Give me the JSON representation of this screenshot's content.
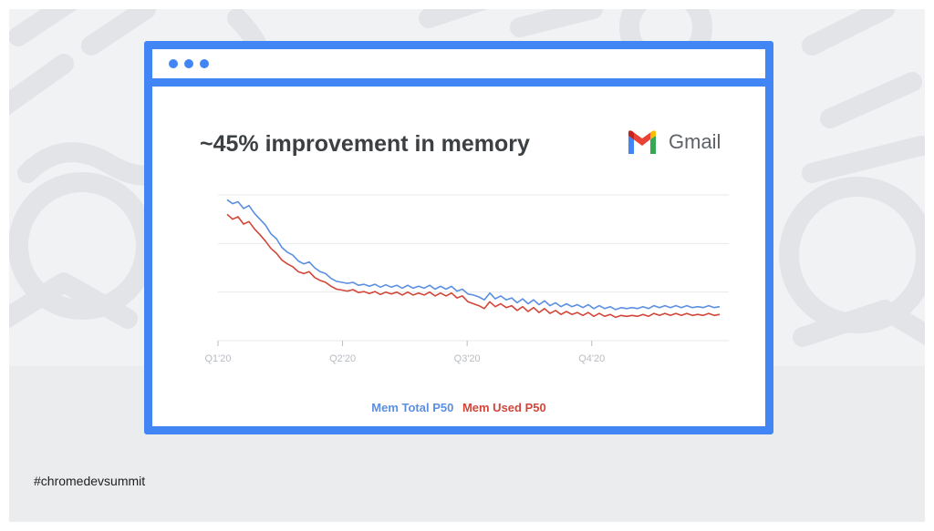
{
  "slide": {
    "hashtag": "#chromedevsummit"
  },
  "browser": {
    "headline": "~45% improvement in memory",
    "brand_name": "Gmail",
    "brand_icon": "gmail-logo-icon"
  },
  "colors": {
    "frame": "#4285f4",
    "total": "#5b8fe0",
    "used": "#d2463a",
    "grid": "#e8eaed",
    "tick": "#b8bcc2"
  },
  "chart_data": {
    "type": "line",
    "title": "~45% improvement in memory",
    "xlabel": "",
    "ylabel": "",
    "x_ticks": [
      "Q1'20",
      "Q2'20",
      "Q3'20",
      "Q4'20"
    ],
    "grid": true,
    "legend_position": "bottom-center",
    "ylim": [
      0,
      3
    ],
    "series": [
      {
        "name": "Mem Total P50",
        "color": "#5b8fe0",
        "values": [
          2.9,
          2.82,
          2.86,
          2.72,
          2.78,
          2.62,
          2.5,
          2.38,
          2.2,
          2.1,
          1.92,
          1.82,
          1.76,
          1.64,
          1.58,
          1.62,
          1.5,
          1.42,
          1.38,
          1.28,
          1.22,
          1.2,
          1.18,
          1.2,
          1.14,
          1.16,
          1.12,
          1.16,
          1.1,
          1.15,
          1.1,
          1.14,
          1.08,
          1.14,
          1.08,
          1.12,
          1.08,
          1.14,
          1.06,
          1.12,
          1.06,
          1.12,
          1.02,
          1.06,
          0.96,
          0.94,
          0.9,
          0.84,
          0.98,
          0.86,
          0.92,
          0.84,
          0.88,
          0.78,
          0.86,
          0.76,
          0.84,
          0.74,
          0.82,
          0.72,
          0.78,
          0.7,
          0.76,
          0.7,
          0.74,
          0.68,
          0.74,
          0.66,
          0.72,
          0.66,
          0.7,
          0.64,
          0.68,
          0.66,
          0.68,
          0.66,
          0.7,
          0.66,
          0.72,
          0.68,
          0.72,
          0.68,
          0.72,
          0.68,
          0.72,
          0.68,
          0.7,
          0.68,
          0.72,
          0.68,
          0.7
        ]
      },
      {
        "name": "Mem Used P50",
        "color": "#d2463a",
        "values": [
          2.6,
          2.5,
          2.55,
          2.4,
          2.45,
          2.3,
          2.18,
          2.05,
          1.9,
          1.8,
          1.66,
          1.58,
          1.52,
          1.42,
          1.38,
          1.42,
          1.3,
          1.24,
          1.2,
          1.12,
          1.06,
          1.04,
          1.02,
          1.05,
          0.99,
          1.01,
          0.97,
          1.01,
          0.95,
          1.0,
          0.96,
          1.0,
          0.94,
          1.0,
          0.94,
          0.98,
          0.94,
          1.0,
          0.92,
          0.98,
          0.92,
          0.98,
          0.88,
          0.92,
          0.8,
          0.76,
          0.72,
          0.66,
          0.8,
          0.7,
          0.76,
          0.68,
          0.72,
          0.62,
          0.7,
          0.6,
          0.68,
          0.58,
          0.66,
          0.56,
          0.62,
          0.54,
          0.6,
          0.54,
          0.58,
          0.52,
          0.58,
          0.5,
          0.56,
          0.5,
          0.54,
          0.48,
          0.52,
          0.5,
          0.52,
          0.5,
          0.54,
          0.5,
          0.56,
          0.52,
          0.56,
          0.52,
          0.56,
          0.52,
          0.56,
          0.52,
          0.54,
          0.52,
          0.56,
          0.52,
          0.54
        ]
      }
    ]
  }
}
